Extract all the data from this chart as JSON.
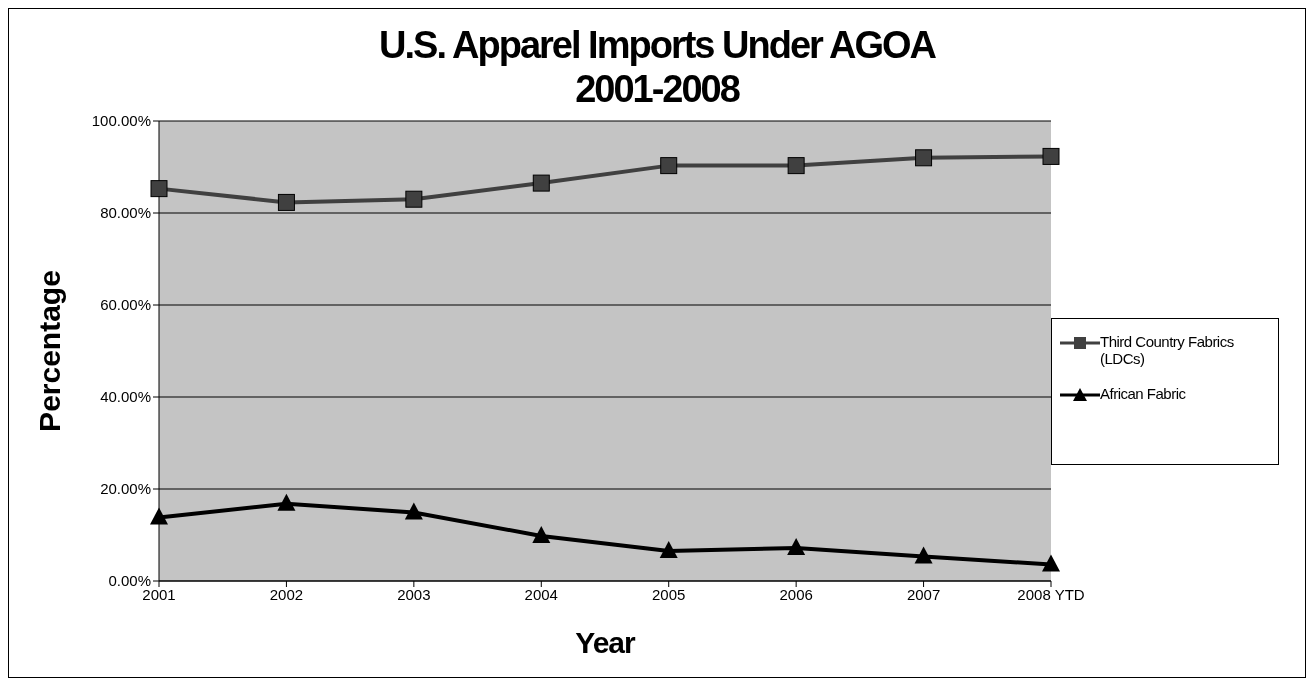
{
  "chart_data": {
    "type": "line",
    "title": "U.S. Apparel Imports Under AGOA\n2001-2008",
    "xlabel": "Year",
    "ylabel": "Percentage",
    "categories": [
      "2001",
      "2002",
      "2003",
      "2004",
      "2005",
      "2006",
      "2007",
      "2008 YTD"
    ],
    "series": [
      {
        "name": "Third Country Fabrics (LDCs)",
        "color": "#404040",
        "marker": "square",
        "values": [
          85.3,
          82.3,
          83,
          86.5,
          90.3,
          90.3,
          92,
          92.3
        ]
      },
      {
        "name": "African Fabric",
        "color": "#000000",
        "marker": "triangle",
        "values": [
          13.8,
          16.8,
          14.9,
          9.8,
          6.5,
          7.2,
          5.3,
          3.6
        ]
      }
    ],
    "ylim": [
      0,
      100
    ],
    "yticks": [
      {
        "value": 0,
        "label": "0.00%"
      },
      {
        "value": 20,
        "label": "20.00%"
      },
      {
        "value": 40,
        "label": "40.00%"
      },
      {
        "value": 60,
        "label": "60.00%"
      },
      {
        "value": 80,
        "label": "80.00%"
      },
      {
        "value": 100,
        "label": "100.00%"
      }
    ],
    "grid": "y",
    "legend": "right"
  }
}
